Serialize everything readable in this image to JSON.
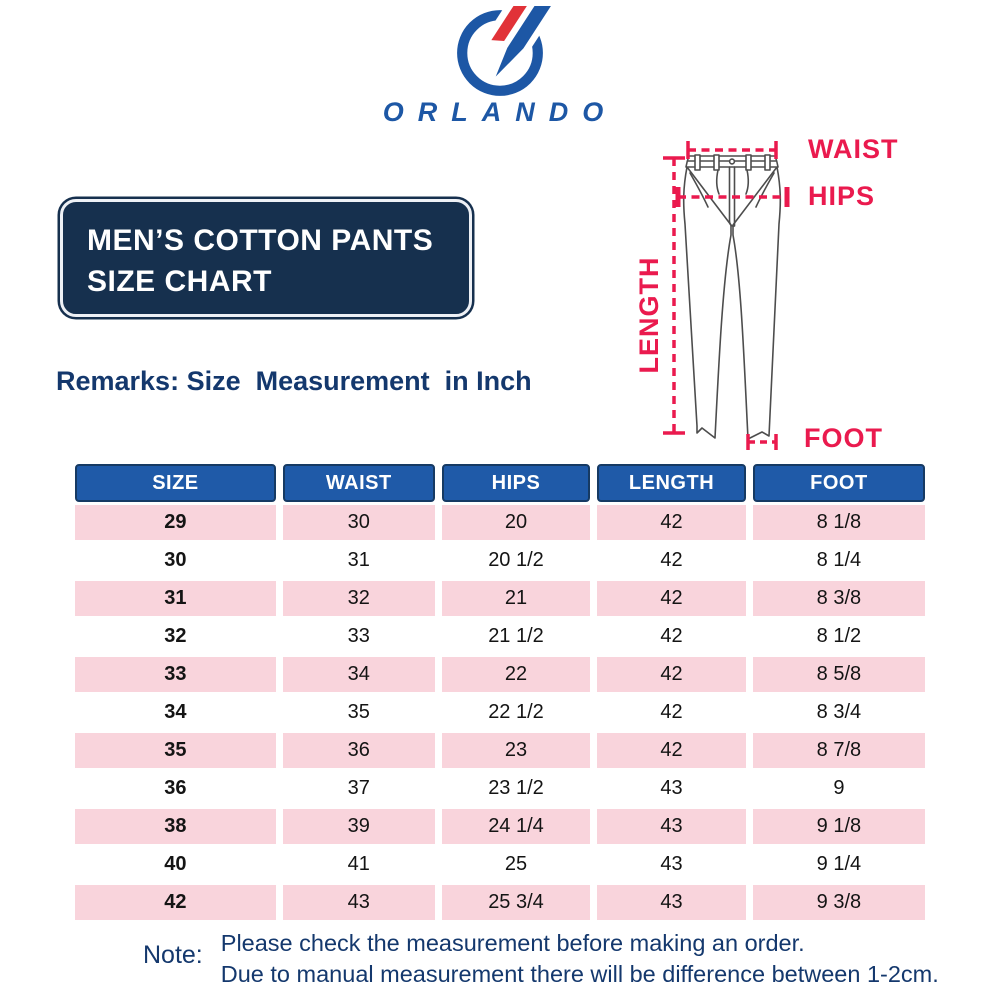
{
  "brand": {
    "name": "ORLANDO"
  },
  "title": {
    "line1": "MEN’S COTTON PANTS",
    "line2": "SIZE CHART"
  },
  "remarks": "Remarks: Size  Measurement  in Inch",
  "diagram": {
    "waist_label": "WAIST",
    "hips_label": "HIPS",
    "length_label": "LENGTH",
    "foot_label": "FOOT"
  },
  "table": {
    "headers": [
      "SIZE",
      "WAIST",
      "HIPS",
      "LENGTH",
      "FOOT"
    ],
    "rows": [
      [
        "29",
        "30",
        "20",
        "42",
        "8 1/8"
      ],
      [
        "30",
        "31",
        "20 1/2",
        "42",
        "8 1/4"
      ],
      [
        "31",
        "32",
        "21",
        "42",
        "8 3/8"
      ],
      [
        "32",
        "33",
        "21 1/2",
        "42",
        "8 1/2"
      ],
      [
        "33",
        "34",
        "22",
        "42",
        "8 5/8"
      ],
      [
        "34",
        "35",
        "22 1/2",
        "42",
        "8 3/4"
      ],
      [
        "35",
        "36",
        "23",
        "42",
        "8 7/8"
      ],
      [
        "36",
        "37",
        "23 1/2",
        "43",
        "9"
      ],
      [
        "38",
        "39",
        "24 1/4",
        "43",
        "9 1/8"
      ],
      [
        "40",
        "41",
        "25",
        "43",
        "9 1/4"
      ],
      [
        "42",
        "43",
        "25 3/4",
        "43",
        "9 3/8"
      ]
    ]
  },
  "note": {
    "label": "Note:",
    "line1": "Please check the measurement before making an order.",
    "line2": "Due to manual measurement there will be difference between 1-2cm."
  },
  "colors": {
    "logo_blue": "#1d57a5",
    "logo_red": "#e13238",
    "title_navy": "#16304e",
    "header_blue": "#1f5aa8",
    "header_border": "#163a63",
    "pink": "#f9d4dc",
    "accent_red": "#ea1a4e",
    "text_navy": "#14386d"
  },
  "chart_data": {
    "type": "table",
    "title": "MEN’S COTTON PANTS SIZE CHART",
    "unit": "Inch",
    "columns": [
      "SIZE",
      "WAIST",
      "HIPS",
      "LENGTH",
      "FOOT"
    ],
    "rows": [
      [
        "29",
        "30",
        "20",
        "42",
        "8 1/8"
      ],
      [
        "30",
        "31",
        "20 1/2",
        "42",
        "8 1/4"
      ],
      [
        "31",
        "32",
        "21",
        "42",
        "8 3/8"
      ],
      [
        "32",
        "33",
        "21 1/2",
        "42",
        "8 1/2"
      ],
      [
        "33",
        "34",
        "22",
        "42",
        "8 5/8"
      ],
      [
        "34",
        "35",
        "22 1/2",
        "42",
        "8 3/4"
      ],
      [
        "35",
        "36",
        "23",
        "42",
        "8 7/8"
      ],
      [
        "36",
        "37",
        "23 1/2",
        "43",
        "9"
      ],
      [
        "38",
        "39",
        "24 1/4",
        "43",
        "9 1/8"
      ],
      [
        "40",
        "41",
        "25",
        "43",
        "9 1/4"
      ],
      [
        "42",
        "43",
        "25 3/4",
        "43",
        "9 3/8"
      ]
    ]
  }
}
